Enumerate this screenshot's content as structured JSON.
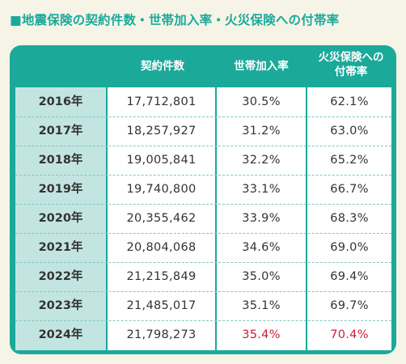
{
  "title": "■地震保険の契約件数・世帯加入率・火災保険への付帯率",
  "headers": {
    "count": "契約件数",
    "household": "世帯加入率",
    "fire_line1": "火災保険への",
    "fire_line2": "付帯率"
  },
  "rows": [
    {
      "year": "2016年",
      "count": "17,712,801",
      "household": "30.5%",
      "fire": "62.1%"
    },
    {
      "year": "2017年",
      "count": "18,257,927",
      "household": "31.2%",
      "fire": "63.0%"
    },
    {
      "year": "2018年",
      "count": "19,005,841",
      "household": "32.2%",
      "fire": "65.2%"
    },
    {
      "year": "2019年",
      "count": "19,740,800",
      "household": "33.1%",
      "fire": "66.7%"
    },
    {
      "year": "2020年",
      "count": "20,355,462",
      "household": "33.9%",
      "fire": "68.3%"
    },
    {
      "year": "2021年",
      "count": "20,804,068",
      "household": "34.6%",
      "fire": "69.0%"
    },
    {
      "year": "2022年",
      "count": "21,215,849",
      "household": "35.0%",
      "fire": "69.4%"
    },
    {
      "year": "2023年",
      "count": "21,485,017",
      "household": "35.1%",
      "fire": "69.7%"
    },
    {
      "year": "2024年",
      "count": "21,798,273",
      "household": "35.4%",
      "fire": "70.4%"
    }
  ],
  "colors": {
    "accent": "#1ba99a",
    "year_bg": "#c3e5e1",
    "highlight": "#c81e3a",
    "background": "#f6f4e6"
  }
}
